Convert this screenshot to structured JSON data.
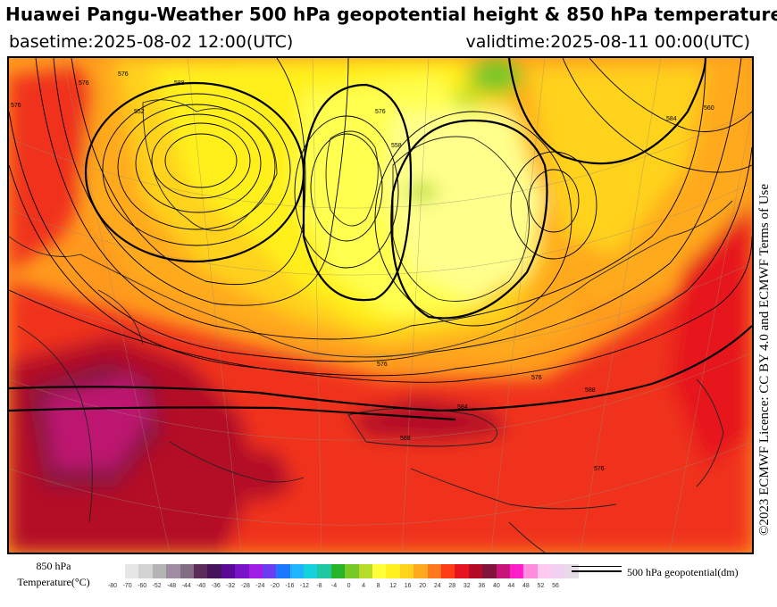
{
  "header": {
    "title": "Huawei Pangu-Weather 500 hPa geopotential height & 850 hPa temperature",
    "basetime": "basetime:2025-08-02 12:00(UTC)",
    "validtime": "validtime:2025-08-11 00:00(UTC)"
  },
  "license": "©2023 ECMWF Licence: CC BY 4.0 and ECMWF Terms of Use",
  "legend": {
    "temperature_label_line1": "850 hPa",
    "temperature_label_line2": "Temperature(°C)",
    "geopotential_label": "500 hPa geopotential(dm)",
    "ticks": [
      "-80",
      "-70",
      "-60",
      "-52",
      "-48",
      "-44",
      "-40",
      "-36",
      "-32",
      "-28",
      "-24",
      "-20",
      "-16",
      "-12",
      "-8",
      "-4",
      "0",
      "4",
      "8",
      "12",
      "16",
      "20",
      "24",
      "28",
      "32",
      "36",
      "40",
      "44",
      "48",
      "52",
      "56"
    ],
    "colors": [
      "#e6e6e6",
      "#d2d2d2",
      "#b4b4b4",
      "#a08ca0",
      "#826e82",
      "#5a2d5a",
      "#46145a",
      "#5a0a96",
      "#7814c8",
      "#a01ee6",
      "#6e3cf0",
      "#1e78ff",
      "#1eb4ff",
      "#14d2dc",
      "#1ec8a0",
      "#28b428",
      "#78c828",
      "#b4dc28",
      "#ffff3c",
      "#fff01e",
      "#ffd21e",
      "#ffaa1e",
      "#ff781e",
      "#ff3c14",
      "#e6141e",
      "#b40a28",
      "#82143c",
      "#c81478",
      "#ff1ec8",
      "#ff8cdc",
      "#ffc8f0",
      "#f0d2f0",
      "#e6dce6"
    ]
  },
  "map": {
    "contour_labels": [
      "576",
      "588",
      "552",
      "576",
      "558",
      "560",
      "584",
      "576",
      "576",
      "588",
      "584",
      "576",
      "576",
      "576",
      "588"
    ]
  }
}
